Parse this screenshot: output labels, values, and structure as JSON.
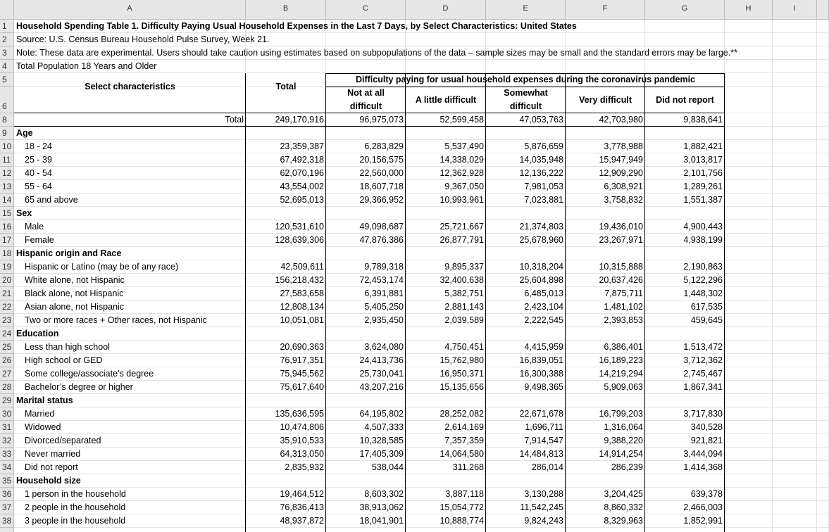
{
  "columns": [
    "A",
    "B",
    "C",
    "D",
    "E",
    "F",
    "G",
    "H",
    "I"
  ],
  "row_numbers": [
    1,
    2,
    3,
    4,
    5,
    6,
    8,
    9,
    10,
    11,
    12,
    13,
    14,
    15,
    16,
    17,
    18,
    19,
    20,
    21,
    22,
    23,
    24,
    25,
    26,
    27,
    28,
    29,
    30,
    31,
    32,
    33,
    34,
    35,
    36,
    37,
    38
  ],
  "sheet": {
    "title": "Household Spending Table 1. Difficulty Paying Usual Household Expenses in the Last 7 Days, by Select Characteristics: United States",
    "source": "Source: U.S. Census Bureau Household Pulse Survey, Week 21.",
    "note": "Note: These data are experimental. Users should take caution using estimates based on subpopulations of the data – sample sizes may be small and the standard errors may be large.**",
    "population": "Total Population 18 Years and Older"
  },
  "header": {
    "characteristics": "Select characteristics",
    "total": "Total",
    "group": "Difficulty paying for usual household expenses during the coronavirus pandemic",
    "subheaders": [
      "Not at all difficult",
      "A little difficult",
      "Somewhat difficult",
      "Very difficult",
      "Did not report"
    ]
  },
  "rows": [
    {
      "label": "Total",
      "values": [
        "249,170,916",
        "96,975,073",
        "52,599,458",
        "47,053,763",
        "42,703,980",
        "9,838,641"
      ]
    },
    {
      "label": "Age"
    },
    {
      "label": "18 - 24",
      "values": [
        "23,359,387",
        "6,283,829",
        "5,537,490",
        "5,876,659",
        "3,778,988",
        "1,882,421"
      ]
    },
    {
      "label": "25 - 39",
      "values": [
        "67,492,318",
        "20,156,575",
        "14,338,029",
        "14,035,948",
        "15,947,949",
        "3,013,817"
      ]
    },
    {
      "label": "40 - 54",
      "values": [
        "62,070,196",
        "22,560,000",
        "12,362,928",
        "12,136,222",
        "12,909,290",
        "2,101,756"
      ]
    },
    {
      "label": "55 - 64",
      "values": [
        "43,554,002",
        "18,607,718",
        "9,367,050",
        "7,981,053",
        "6,308,921",
        "1,289,261"
      ]
    },
    {
      "label": "65 and above",
      "values": [
        "52,695,013",
        "29,366,952",
        "10,993,961",
        "7,023,881",
        "3,758,832",
        "1,551,387"
      ]
    },
    {
      "label": "Sex"
    },
    {
      "label": "Male",
      "values": [
        "120,531,610",
        "49,098,687",
        "25,721,667",
        "21,374,803",
        "19,436,010",
        "4,900,443"
      ]
    },
    {
      "label": "Female",
      "values": [
        "128,639,306",
        "47,876,386",
        "26,877,791",
        "25,678,960",
        "23,267,971",
        "4,938,199"
      ]
    },
    {
      "label": "Hispanic origin and Race"
    },
    {
      "label": "Hispanic or Latino (may be of any race)",
      "values": [
        "42,509,611",
        "9,789,318",
        "9,895,337",
        "10,318,204",
        "10,315,888",
        "2,190,863"
      ]
    },
    {
      "label": "White alone, not Hispanic",
      "values": [
        "156,218,432",
        "72,453,174",
        "32,400,638",
        "25,604,898",
        "20,637,426",
        "5,122,296"
      ]
    },
    {
      "label": "Black alone, not Hispanic",
      "values": [
        "27,583,658",
        "6,391,881",
        "5,382,751",
        "6,485,013",
        "7,875,711",
        "1,448,302"
      ]
    },
    {
      "label": "Asian alone, not Hispanic",
      "values": [
        "12,808,134",
        "5,405,250",
        "2,881,143",
        "2,423,104",
        "1,481,102",
        "617,535"
      ]
    },
    {
      "label": "Two or more races + Other races, not Hispanic",
      "values": [
        "10,051,081",
        "2,935,450",
        "2,039,589",
        "2,222,545",
        "2,393,853",
        "459,645"
      ]
    },
    {
      "label": "Education"
    },
    {
      "label": "Less than high school",
      "values": [
        "20,690,363",
        "3,624,080",
        "4,750,451",
        "4,415,959",
        "6,386,401",
        "1,513,472"
      ]
    },
    {
      "label": "High school or GED",
      "values": [
        "76,917,351",
        "24,413,736",
        "15,762,980",
        "16,839,051",
        "16,189,223",
        "3,712,362"
      ]
    },
    {
      "label": "Some college/associate’s degree",
      "values": [
        "75,945,562",
        "25,730,041",
        "16,950,371",
        "16,300,388",
        "14,219,294",
        "2,745,467"
      ]
    },
    {
      "label": "Bachelor’s degree or higher",
      "values": [
        "75,617,640",
        "43,207,216",
        "15,135,656",
        "9,498,365",
        "5,909,063",
        "1,867,341"
      ]
    },
    {
      "label": "Marital status"
    },
    {
      "label": "Married",
      "values": [
        "135,636,595",
        "64,195,802",
        "28,252,082",
        "22,671,678",
        "16,799,203",
        "3,717,830"
      ]
    },
    {
      "label": "Widowed",
      "values": [
        "10,474,806",
        "4,507,333",
        "2,614,169",
        "1,696,711",
        "1,316,064",
        "340,528"
      ]
    },
    {
      "label": "Divorced/separated",
      "values": [
        "35,910,533",
        "10,328,585",
        "7,357,359",
        "7,914,547",
        "9,388,220",
        "921,821"
      ]
    },
    {
      "label": "Never married",
      "values": [
        "64,313,050",
        "17,405,309",
        "14,064,580",
        "14,484,813",
        "14,914,254",
        "3,444,094"
      ]
    },
    {
      "label": "Did not report",
      "values": [
        "2,835,932",
        "538,044",
        "311,268",
        "286,014",
        "286,239",
        "1,414,368"
      ]
    },
    {
      "label": "Household size"
    },
    {
      "label": "1 person in the household",
      "values": [
        "19,464,512",
        "8,603,302",
        "3,887,118",
        "3,130,288",
        "3,204,425",
        "639,378"
      ]
    },
    {
      "label": "2 people in the household",
      "values": [
        "76,836,413",
        "38,913,062",
        "15,054,772",
        "11,542,245",
        "8,860,332",
        "2,466,003"
      ]
    },
    {
      "label": "3 people in the household",
      "values": [
        "48,937,872",
        "18,041,901",
        "10,888,774",
        "9,824,243",
        "8,329,963",
        "1,852,991"
      ]
    }
  ]
}
